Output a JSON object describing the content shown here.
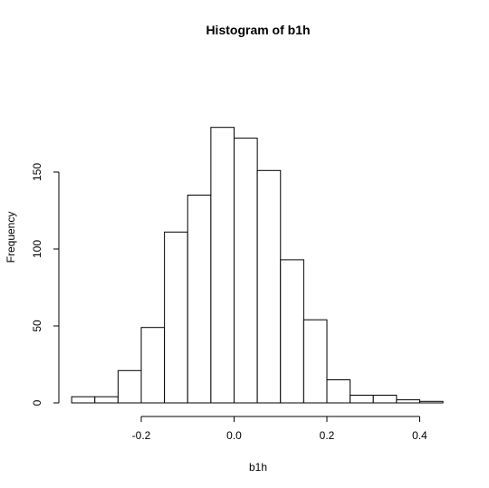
{
  "chart_data": {
    "type": "bar",
    "title": "Histogram of b1h",
    "xlabel": "b1h",
    "ylabel": "Frequency",
    "bin_edges": [
      -0.35,
      -0.3,
      -0.25,
      -0.2,
      -0.15,
      -0.1,
      -0.05,
      0.0,
      0.05,
      0.1,
      0.15,
      0.2,
      0.25,
      0.3,
      0.35,
      0.4,
      0.45
    ],
    "values": [
      4,
      4,
      21,
      49,
      111,
      135,
      179,
      172,
      151,
      93,
      54,
      15,
      5,
      5,
      2,
      1
    ],
    "xticks": [
      -0.2,
      0.0,
      0.2,
      0.4
    ],
    "xtick_labels": [
      "-0.2",
      "0.0",
      "0.2",
      "0.4"
    ],
    "yticks": [
      0,
      50,
      100,
      150
    ],
    "ytick_labels": [
      "0",
      "50",
      "100",
      "150"
    ],
    "ylim": [
      0,
      180
    ],
    "grid": false
  }
}
